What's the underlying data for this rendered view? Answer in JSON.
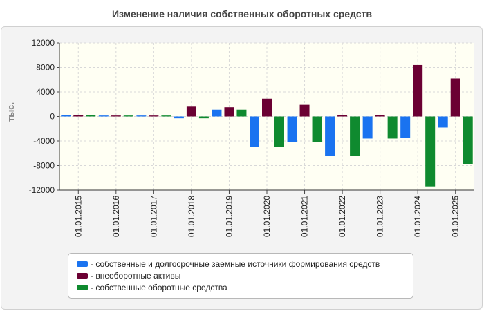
{
  "title": "Изменение наличия собственных оборотных средств",
  "chart_data": {
    "type": "bar",
    "title": "Изменение наличия собственных оборотных средств",
    "ylabel": "тыс.",
    "xlabel": "",
    "ylim": [
      -12000,
      12000
    ],
    "yticks": [
      12000,
      8000,
      4000,
      0,
      -4000,
      -8000,
      -12000
    ],
    "grid": true,
    "legend_position": "bottom",
    "categories": [
      "01.01.2015",
      "01.01.2016",
      "01.01.2017",
      "01.01.2018",
      "01.01.2019",
      "01.01.2020",
      "01.01.2021",
      "01.01.2022",
      "01.01.2023",
      "01.01.2024",
      "01.01.2025"
    ],
    "series": [
      {
        "name": "- собственные и долгосрочные заемные источники формирования средств",
        "color": "#1a73f0",
        "values": [
          200,
          150,
          150,
          -300,
          1100,
          -5000,
          -4200,
          -6400,
          -3600,
          -3500,
          -1800
        ]
      },
      {
        "name": "- внеоборотные активы",
        "color": "#6b0033",
        "values": [
          200,
          150,
          150,
          1600,
          1500,
          2900,
          1900,
          200,
          200,
          8400,
          6200
        ]
      },
      {
        "name": "- собственные оборотные средства",
        "color": "#0f8a2f",
        "values": [
          200,
          150,
          150,
          -300,
          1100,
          -5000,
          -4200,
          -6400,
          -3600,
          -11400,
          -7800
        ]
      }
    ]
  }
}
